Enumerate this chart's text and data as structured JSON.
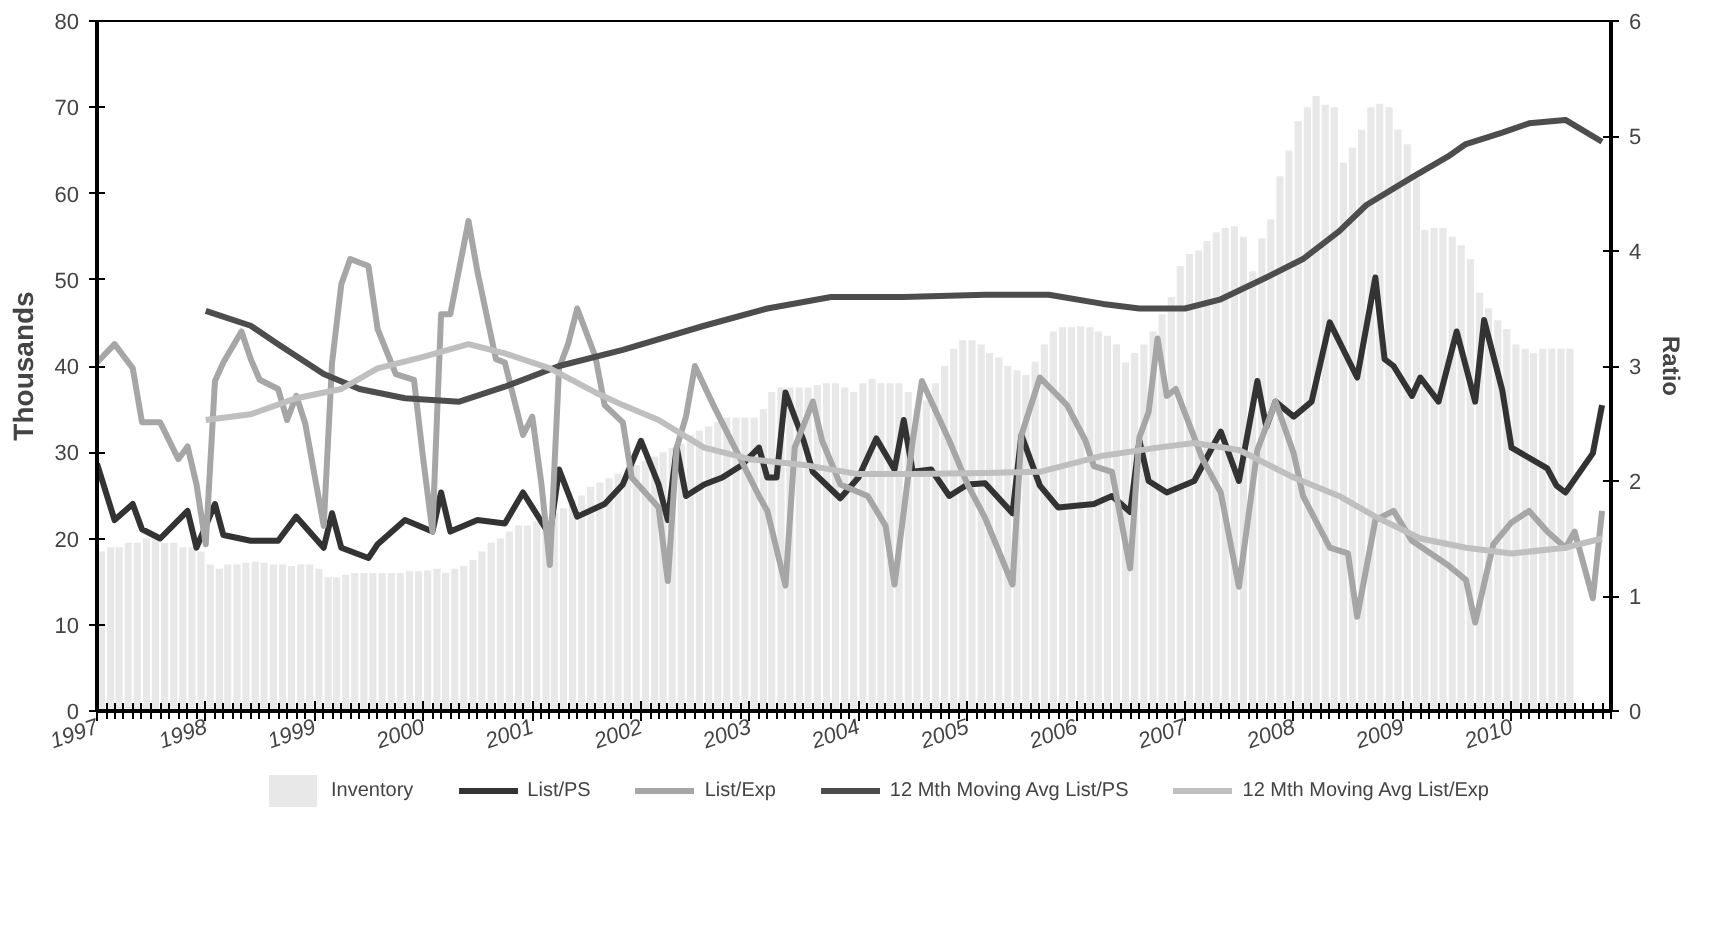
{
  "chart_data": {
    "type": "line",
    "ylabel": "Thousands",
    "y2label": "Ratio",
    "xlim": [
      "1997-01",
      "2010-12"
    ],
    "xticks": [
      {
        "value": "1997-01",
        "label": "1997"
      },
      {
        "value": "1998-01",
        "label": "1998"
      },
      {
        "value": "1999-01",
        "label": "1999"
      },
      {
        "value": "2000-01",
        "label": "2000"
      },
      {
        "value": "2001-01",
        "label": "2001"
      },
      {
        "value": "2002-01",
        "label": "2002"
      },
      {
        "value": "2003-01",
        "label": "2003"
      },
      {
        "value": "2004-01",
        "label": "2004"
      },
      {
        "value": "2005-01",
        "label": "2005"
      },
      {
        "value": "2006-01",
        "label": "2006"
      },
      {
        "value": "2007-01",
        "label": "2007"
      },
      {
        "value": "2008-01",
        "label": "2008"
      },
      {
        "value": "2009-01",
        "label": "2009"
      },
      {
        "value": "2010-01",
        "label": "2010"
      }
    ],
    "ylim": [
      0,
      80
    ],
    "yticks": [
      0,
      10,
      20,
      30,
      40,
      50,
      60,
      70,
      80
    ],
    "y2lim": [
      0,
      6
    ],
    "y2ticks": [
      0,
      1,
      2,
      3,
      4,
      5,
      6
    ],
    "grid": false,
    "legend": "bottom",
    "line_style": "solid",
    "marker": "none",
    "series": [
      {
        "name": "Inventory",
        "type": "bar",
        "color": "#e8e8e8",
        "x": [
          "1997-01",
          "1997-02",
          "1997-03",
          "1997-04",
          "1997-05",
          "1997-06",
          "1997-07",
          "1997-08",
          "1997-09",
          "1997-10",
          "1997-11",
          "1997-12",
          "1998-01",
          "1998-02",
          "1998-03",
          "1998-04",
          "1998-05",
          "1998-06",
          "1998-07",
          "1998-08",
          "1998-09",
          "1998-10",
          "1998-11",
          "1998-12",
          "1999-01",
          "1999-02",
          "1999-03",
          "1999-04",
          "1999-05",
          "1999-06",
          "1999-07",
          "1999-08",
          "1999-09",
          "1999-10",
          "1999-11",
          "1999-12",
          "2000-01",
          "2000-02",
          "2000-03",
          "2000-04",
          "2000-05",
          "2000-06",
          "2000-07",
          "2000-08",
          "2000-09",
          "2000-10",
          "2000-11",
          "2000-12",
          "2001-01",
          "2001-02",
          "2001-03",
          "2001-04",
          "2001-05",
          "2001-06",
          "2001-07",
          "2001-08",
          "2001-09",
          "2001-10",
          "2001-11",
          "2001-12",
          "2002-01",
          "2002-02",
          "2002-03",
          "2002-04",
          "2002-05",
          "2002-06",
          "2002-07",
          "2002-08",
          "2002-09",
          "2002-10",
          "2002-11",
          "2002-12",
          "2003-01",
          "2003-02",
          "2003-03",
          "2003-04",
          "2003-05",
          "2003-06",
          "2003-07",
          "2003-08",
          "2003-09",
          "2003-10",
          "2003-11",
          "2003-12",
          "2004-01",
          "2004-02",
          "2004-03",
          "2004-04",
          "2004-05",
          "2004-06",
          "2004-07",
          "2004-08",
          "2004-09",
          "2004-10",
          "2004-11",
          "2004-12",
          "2005-01",
          "2005-02",
          "2005-03",
          "2005-04",
          "2005-05",
          "2005-06",
          "2005-07",
          "2005-08",
          "2005-09",
          "2005-10",
          "2005-11",
          "2005-12",
          "2006-01",
          "2006-02",
          "2006-03",
          "2006-04",
          "2006-05",
          "2006-06",
          "2006-07",
          "2006-08",
          "2006-09",
          "2006-10",
          "2006-11",
          "2006-12",
          "2007-01",
          "2007-02",
          "2007-03",
          "2007-04",
          "2007-05",
          "2007-06",
          "2007-07",
          "2007-08",
          "2007-09",
          "2007-10",
          "2007-11",
          "2007-12",
          "2008-01",
          "2008-02",
          "2008-03",
          "2008-04",
          "2008-05",
          "2008-06",
          "2008-07",
          "2008-08",
          "2008-09",
          "2008-10",
          "2008-11",
          "2008-12",
          "2009-01",
          "2009-02",
          "2009-03",
          "2009-04",
          "2009-05",
          "2009-06",
          "2009-07",
          "2009-08",
          "2009-09",
          "2009-10",
          "2009-11",
          "2009-12",
          "2010-01",
          "2010-02",
          "2010-03",
          "2010-04",
          "2010-05",
          "2010-06",
          "2010-07"
        ],
        "values": [
          18.5,
          19,
          19,
          19.5,
          19.5,
          20,
          20,
          19.5,
          19.5,
          19,
          19,
          18.5,
          17,
          16.5,
          17,
          17,
          17.2,
          17.3,
          17.2,
          17,
          17,
          16.8,
          17,
          17,
          16.5,
          15.5,
          15.5,
          15.8,
          16,
          16,
          16,
          16,
          16,
          16,
          16.2,
          16.2,
          16.3,
          16.5,
          16,
          16.5,
          16.8,
          17.5,
          18.5,
          19.5,
          20,
          20.8,
          21.5,
          21.5,
          22,
          22.5,
          23,
          23.5,
          24.5,
          25,
          26,
          26.5,
          27,
          27.5,
          28,
          28.5,
          29,
          29.5,
          30,
          30.5,
          31,
          32,
          32.5,
          33,
          33.5,
          34,
          34,
          34,
          34,
          35,
          37,
          37.5,
          37.5,
          37.5,
          37.5,
          37.8,
          38,
          38,
          37.5,
          37,
          38,
          38.5,
          38,
          38,
          38,
          37,
          35,
          36,
          38,
          40,
          42,
          43,
          43,
          42.5,
          41.5,
          41,
          40,
          39.5,
          39,
          40.5,
          42.5,
          44,
          44.5,
          44.5,
          44.6,
          44.5,
          44,
          43.5,
          42.5,
          40.4,
          41.5,
          42.5,
          44,
          46,
          48,
          51.6,
          53,
          53.4,
          54.5,
          55.5,
          56,
          56.2,
          55,
          51,
          54.8,
          57,
          62,
          65,
          68.4,
          70,
          71.3,
          70.3,
          70,
          63.6,
          65.3,
          67.4,
          70,
          70.4,
          70,
          67.4,
          65.7,
          61.8,
          55.8,
          56,
          56,
          55,
          54,
          52.4,
          48.5,
          46.7,
          45.3,
          44.3,
          42.5,
          42,
          41.5,
          42,
          42,
          42,
          42
        ]
      },
      {
        "name": "List/PS",
        "axis": "y2",
        "color": "#333333",
        "x": [
          "1997-01",
          "1997-03",
          "1997-05",
          "1997-06",
          "1997-08",
          "1997-11",
          "1997-12",
          "1998-02",
          "1998-03",
          "1998-06",
          "1998-09",
          "1998-11",
          "1999-02",
          "1999-03",
          "1999-04",
          "1999-07",
          "1999-08",
          "1999-11",
          "2000-02",
          "2000-03",
          "2000-04",
          "2000-07",
          "2000-10",
          "2000-12",
          "2001-03",
          "2001-04",
          "2001-06",
          "2001-09",
          "2001-11",
          "2002-01",
          "2002-03",
          "2002-04",
          "2002-05",
          "2002-06",
          "2002-08",
          "2002-10",
          "2002-12",
          "2003-02",
          "2003-03",
          "2003-04",
          "2003-05",
          "2003-07",
          "2003-08",
          "2003-11",
          "2004-01",
          "2004-03",
          "2004-05",
          "2004-06",
          "2004-07",
          "2004-09",
          "2004-11",
          "2005-01",
          "2005-03",
          "2005-06",
          "2005-07",
          "2005-09",
          "2005-11",
          "2006-03",
          "2006-05",
          "2006-07",
          "2006-08",
          "2006-09",
          "2006-11",
          "2007-02",
          "2007-05",
          "2007-07",
          "2007-09",
          "2007-10",
          "2007-11",
          "2008-01",
          "2008-03",
          "2008-05",
          "2008-08",
          "2008-10",
          "2008-11",
          "2008-12",
          "2009-02",
          "2009-03",
          "2009-05",
          "2009-07",
          "2009-09",
          "2009-10",
          "2009-12",
          "2010-01",
          "2010-05",
          "2010-06",
          "2010-07",
          "2010-10",
          "2010-11"
        ],
        "values": [
          2.15,
          1.66,
          1.8,
          1.58,
          1.5,
          1.74,
          1.42,
          1.8,
          1.53,
          1.48,
          1.48,
          1.69,
          1.42,
          1.72,
          1.42,
          1.33,
          1.45,
          1.66,
          1.56,
          1.9,
          1.56,
          1.66,
          1.63,
          1.9,
          1.53,
          2.1,
          1.69,
          1.8,
          1.97,
          2.35,
          1.97,
          1.66,
          2.29,
          1.87,
          1.97,
          2.03,
          2.13,
          2.29,
          2.03,
          2.03,
          2.77,
          2.35,
          2.08,
          1.85,
          2.03,
          2.37,
          2.1,
          2.53,
          2.08,
          2.1,
          1.87,
          1.97,
          1.98,
          1.72,
          2.4,
          1.96,
          1.77,
          1.8,
          1.87,
          1.73,
          2.35,
          2.0,
          1.9,
          2.0,
          2.43,
          2.0,
          2.87,
          2.47,
          2.69,
          2.56,
          2.69,
          3.38,
          2.9,
          3.77,
          3.06,
          3.0,
          2.74,
          2.9,
          2.69,
          3.3,
          2.69,
          3.4,
          2.79,
          2.29,
          2.11,
          1.96,
          1.9,
          2.24,
          2.66
        ]
      },
      {
        "name": "List/Exp",
        "axis": "y2",
        "color": "#a6a6a6",
        "x": [
          "1997-01",
          "1997-03",
          "1997-05",
          "1997-06",
          "1997-08",
          "1997-10",
          "1997-11",
          "1997-12",
          "1998-01",
          "1998-02",
          "1998-03",
          "1998-05",
          "1998-06",
          "1998-07",
          "1998-09",
          "1998-10",
          "1998-11",
          "1998-12",
          "1999-02",
          "1999-03",
          "1999-04",
          "1999-05",
          "1999-07",
          "1999-08",
          "1999-10",
          "1999-12",
          "2000-01",
          "2000-02",
          "2000-03",
          "2000-04",
          "2000-06",
          "2000-07",
          "2000-09",
          "2000-10",
          "2000-12",
          "2001-01",
          "2001-02",
          "2001-03",
          "2001-04",
          "2001-05",
          "2001-06",
          "2001-08",
          "2001-09",
          "2001-11",
          "2001-12",
          "2002-03",
          "2002-04",
          "2002-05",
          "2002-06",
          "2002-07",
          "2002-09",
          "2002-12",
          "2003-02",
          "2003-03",
          "2003-05",
          "2003-06",
          "2003-08",
          "2003-09",
          "2003-11",
          "2004-02",
          "2004-04",
          "2004-05",
          "2004-07",
          "2004-08",
          "2004-11",
          "2005-01",
          "2005-03",
          "2005-06",
          "2005-07",
          "2005-09",
          "2005-12",
          "2006-02",
          "2006-03",
          "2006-05",
          "2006-07",
          "2006-08",
          "2006-09",
          "2006-10",
          "2006-11",
          "2006-12",
          "2007-03",
          "2007-05",
          "2007-07",
          "2007-09",
          "2007-11",
          "2008-01",
          "2008-02",
          "2008-05",
          "2008-07",
          "2008-08",
          "2008-10",
          "2008-12",
          "2009-02",
          "2009-06",
          "2009-08",
          "2009-09",
          "2009-11",
          "2010-01",
          "2010-03",
          "2010-05",
          "2010-07",
          "2010-08",
          "2010-10",
          "2010-11"
        ],
        "values": [
          3.03,
          3.19,
          2.98,
          2.51,
          2.51,
          2.19,
          2.3,
          1.97,
          1.45,
          2.87,
          3.03,
          3.3,
          3.06,
          2.88,
          2.8,
          2.53,
          2.74,
          2.5,
          1.61,
          3.03,
          3.71,
          3.93,
          3.87,
          3.32,
          2.93,
          2.88,
          2.19,
          1.56,
          3.45,
          3.45,
          4.26,
          3.82,
          3.06,
          3.03,
          2.4,
          2.56,
          1.97,
          1.27,
          2.98,
          3.19,
          3.5,
          3.08,
          2.66,
          2.51,
          2.03,
          1.77,
          1.13,
          2.29,
          2.56,
          3.0,
          2.66,
          2.19,
          1.87,
          1.74,
          1.09,
          2.29,
          2.69,
          2.35,
          1.97,
          1.87,
          1.61,
          1.1,
          2.35,
          2.87,
          2.35,
          1.97,
          1.68,
          1.1,
          2.4,
          2.9,
          2.66,
          2.35,
          2.13,
          2.08,
          1.24,
          2.38,
          2.6,
          3.24,
          2.74,
          2.8,
          2.19,
          1.9,
          1.08,
          2.27,
          2.69,
          2.24,
          1.87,
          1.42,
          1.37,
          0.82,
          1.66,
          1.74,
          1.48,
          1.27,
          1.14,
          0.77,
          1.45,
          1.64,
          1.74,
          1.56,
          1.42,
          1.56,
          0.98,
          1.74
        ]
      },
      {
        "name": "12 Mth Moving Avg List/PS",
        "axis": "y2",
        "color": "#4d4d4d",
        "x": [
          "1998-01",
          "1998-06",
          "1998-09",
          "1999-02",
          "1999-06",
          "1999-11",
          "2000-05",
          "2000-10",
          "2001-04",
          "2001-11",
          "2002-08",
          "2003-03",
          "2003-10",
          "2004-06",
          "2005-03",
          "2005-10",
          "2006-04",
          "2006-08",
          "2007-01",
          "2007-05",
          "2007-10",
          "2008-02",
          "2008-06",
          "2008-09",
          "2009-02",
          "2009-06",
          "2009-08",
          "2009-12",
          "2010-03",
          "2010-07",
          "2010-11"
        ],
        "values": [
          3.48,
          3.35,
          3.19,
          2.93,
          2.8,
          2.72,
          2.69,
          2.82,
          3.0,
          3.14,
          3.35,
          3.5,
          3.6,
          3.6,
          3.62,
          3.62,
          3.54,
          3.5,
          3.5,
          3.58,
          3.77,
          3.93,
          4.17,
          4.4,
          4.64,
          4.82,
          4.93,
          5.03,
          5.11,
          5.14,
          4.95
        ]
      },
      {
        "name": "12 Mth Moving Avg List/Exp",
        "axis": "y2",
        "color": "#bfbfbf",
        "x": [
          "1998-01",
          "1998-06",
          "1998-11",
          "1999-04",
          "1999-08",
          "2000-01",
          "2000-06",
          "2000-10",
          "2001-03",
          "2001-08",
          "2001-11",
          "2002-03",
          "2002-08",
          "2003-01",
          "2003-07",
          "2004-01",
          "2004-07",
          "2005-03",
          "2005-09",
          "2006-04",
          "2006-10",
          "2007-02",
          "2007-07",
          "2008-01",
          "2008-06",
          "2008-10",
          "2009-03",
          "2009-08",
          "2010-01",
          "2010-07",
          "2010-11"
        ],
        "values": [
          2.53,
          2.58,
          2.72,
          2.8,
          2.98,
          3.08,
          3.19,
          3.11,
          2.98,
          2.77,
          2.66,
          2.53,
          2.29,
          2.19,
          2.14,
          2.06,
          2.06,
          2.07,
          2.08,
          2.22,
          2.29,
          2.33,
          2.27,
          2.03,
          1.87,
          1.69,
          1.5,
          1.42,
          1.37,
          1.42,
          1.5
        ]
      }
    ]
  }
}
